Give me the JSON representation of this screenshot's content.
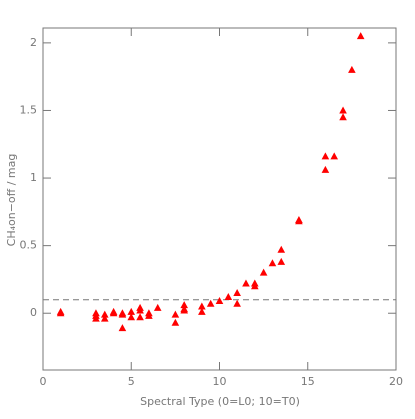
{
  "chart_data": {
    "type": "scatter",
    "x_label": "Spectral Type (0=L0; 10=T0)",
    "y_label": "CH₄on−off / mag",
    "xlim": [
      0,
      20
    ],
    "ylim": [
      -0.42,
      2.11
    ],
    "xticks": [
      0,
      5,
      10,
      15,
      20
    ],
    "yticks": [
      0,
      0.5,
      1,
      1.5,
      2
    ],
    "hline": 0.1,
    "series": [
      {
        "color": "#ff0000",
        "x": [
          1,
          1,
          3,
          3,
          3,
          3.5,
          3.5,
          4,
          4,
          4.5,
          4.5,
          4.5,
          5,
          5,
          5.5,
          5.5,
          5.5,
          6,
          6,
          6.5,
          7.5,
          7.5,
          8,
          8,
          8,
          9,
          9,
          9.5,
          10,
          10.5,
          11,
          11,
          11.5,
          12,
          12,
          12.5,
          13,
          13.5,
          13.5,
          14.5,
          14.5,
          16,
          16,
          16.5,
          17,
          17,
          17.5,
          18
        ],
        "values": [
          0.0,
          0.01,
          -0.04,
          0.0,
          -0.02,
          -0.01,
          -0.04,
          0.01,
          0.0,
          -0.11,
          -0.01,
          0.0,
          0.01,
          -0.03,
          0.04,
          0.02,
          -0.03,
          0.0,
          -0.02,
          0.04,
          -0.07,
          -0.01,
          0.02,
          0.06,
          0.03,
          0.01,
          0.05,
          0.07,
          0.09,
          0.12,
          0.07,
          0.15,
          0.22,
          0.2,
          0.22,
          0.3,
          0.37,
          0.38,
          0.47,
          0.68,
          0.69,
          1.06,
          1.16,
          1.16,
          1.45,
          1.5,
          1.8,
          2.05
        ]
      }
    ]
  }
}
